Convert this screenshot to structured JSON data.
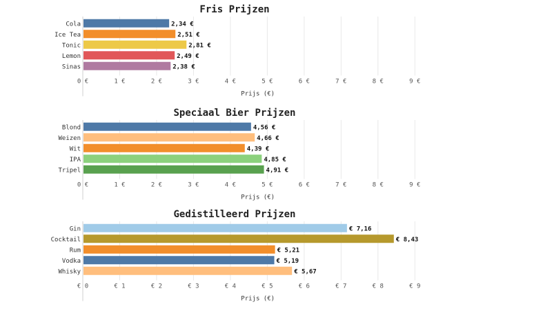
{
  "chart_data": [
    {
      "type": "bar",
      "orientation": "horizontal",
      "title": "Fris Prijzen",
      "xlabel": "Prijs (€)",
      "categories": [
        "Cola",
        "Ice Tea",
        "Tonic",
        "Lemon",
        "Sinas"
      ],
      "values": [
        2.34,
        2.51,
        2.81,
        2.49,
        2.38
      ],
      "value_labels": [
        "2,34 €",
        "2,51 €",
        "2,81 €",
        "2,49 €",
        "2,38 €"
      ],
      "colors": [
        "#4e79a7",
        "#f28e2b",
        "#edc948",
        "#e15759",
        "#b07aa1"
      ],
      "xlim": [
        0,
        9.5
      ],
      "ticks": [
        0,
        1,
        2,
        3,
        4,
        5,
        6,
        7,
        8,
        9
      ],
      "tick_labels": [
        "0 €",
        "1 €",
        "2 €",
        "3 €",
        "4 €",
        "5 €",
        "6 €",
        "7 €",
        "8 €",
        "9 €"
      ],
      "grid": true,
      "label_position": "end"
    },
    {
      "type": "bar",
      "orientation": "horizontal",
      "title": "Speciaal Bier Prijzen",
      "xlabel": "Prijs (€)",
      "categories": [
        "Blond",
        "Weizen",
        "Wit",
        "IPA",
        "Tripel"
      ],
      "values": [
        4.56,
        4.66,
        4.39,
        4.85,
        4.91
      ],
      "value_labels": [
        "4,56 €",
        "4,66 €",
        "4,39 €",
        "4,85 €",
        "4,91 €"
      ],
      "colors": [
        "#4e79a7",
        "#ffbe7d",
        "#f28e2b",
        "#8cd17d",
        "#59a14f"
      ],
      "xlim": [
        0,
        9.5
      ],
      "ticks": [
        0,
        1,
        2,
        3,
        4,
        5,
        6,
        7,
        8,
        9
      ],
      "tick_labels": [
        "0 €",
        "1 €",
        "2 €",
        "3 €",
        "4 €",
        "5 €",
        "6 €",
        "7 €",
        "8 €",
        "9 €"
      ],
      "grid": true,
      "label_position": "end"
    },
    {
      "type": "bar",
      "orientation": "horizontal",
      "title": "Gedistilleerd Prijzen",
      "xlabel": "Prijs (€)",
      "categories": [
        "Gin",
        "Cocktail",
        "Rum",
        "Vodka",
        "Whisky"
      ],
      "values": [
        7.16,
        8.43,
        5.21,
        5.19,
        5.67
      ],
      "value_labels": [
        "€ 7,16",
        "€ 8,43",
        "€ 5,21",
        "€ 5,19",
        "€ 5,67"
      ],
      "colors": [
        "#a0cbe8",
        "#b6992d",
        "#f28e2b",
        "#4e79a7",
        "#ffbe7d"
      ],
      "xlim": [
        0,
        9.5
      ],
      "ticks": [
        0,
        1,
        2,
        3,
        4,
        5,
        6,
        7,
        8,
        9
      ],
      "tick_labels": [
        "€ 0",
        "€ 1",
        "€ 2",
        "€ 3",
        "€ 4",
        "€ 5",
        "€ 6",
        "€ 7",
        "€ 8",
        "€ 9"
      ],
      "grid": true,
      "label_position": "end"
    }
  ]
}
